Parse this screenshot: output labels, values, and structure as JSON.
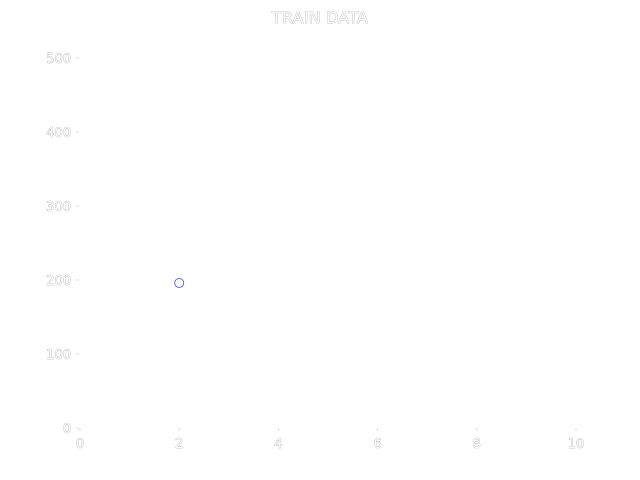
{
  "chart_data": {
    "type": "scatter",
    "title": "TRAIN DATA",
    "xlabel": "",
    "ylabel": "",
    "xlim": [
      0,
      10
    ],
    "ylim": [
      0,
      500
    ],
    "x_ticks": [
      0,
      2,
      4,
      6,
      8,
      10
    ],
    "y_ticks": [
      0,
      100,
      200,
      300,
      400,
      500
    ],
    "x_tick_labels": [
      "0",
      "2",
      "4",
      "6",
      "8",
      "10"
    ],
    "y_tick_labels": [
      "0",
      "100",
      "200",
      "300",
      "400",
      "500"
    ],
    "grid": false,
    "series": [
      {
        "x": [
          2
        ],
        "y": [
          196
        ],
        "color": "#6b6bd6",
        "marker": "circle-open"
      }
    ]
  }
}
